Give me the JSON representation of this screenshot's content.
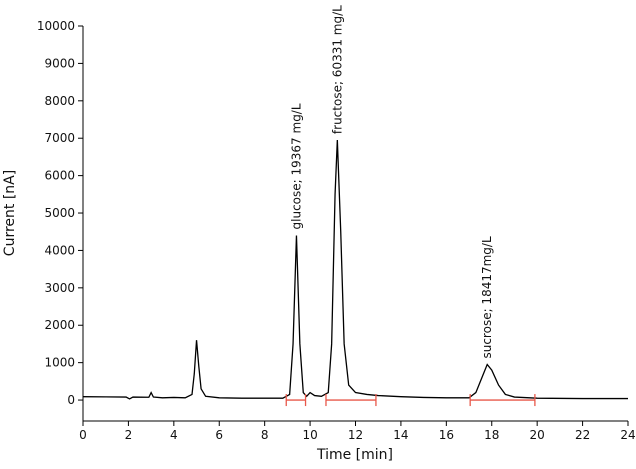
{
  "chart_data": {
    "type": "line",
    "xlabel": "Time [min]",
    "ylabel": "Current [nA]",
    "x": [
      0,
      1,
      1.9,
      2.05,
      2.2,
      2.9,
      3.0,
      3.1,
      3.5,
      4.0,
      4.5,
      4.8,
      4.9,
      5.0,
      5.1,
      5.2,
      5.4,
      6,
      7,
      8,
      8.8,
      9.1,
      9.25,
      9.4,
      9.55,
      9.7,
      9.85,
      10.0,
      10.2,
      10.5,
      10.8,
      10.95,
      11.1,
      11.2,
      11.35,
      11.5,
      11.7,
      12.0,
      12.5,
      13,
      14,
      15,
      16,
      17,
      17.3,
      17.6,
      17.8,
      18.0,
      18.3,
      18.6,
      19,
      20,
      22,
      24
    ],
    "series": [
      {
        "color": "#000000",
        "values": [
          90,
          85,
          80,
          30,
          80,
          75,
          200,
          80,
          60,
          70,
          60,
          150,
          700,
          1600,
          900,
          300,
          100,
          60,
          50,
          50,
          50,
          150,
          1500,
          4400,
          1500,
          200,
          100,
          200,
          120,
          100,
          200,
          1500,
          5500,
          6950,
          4500,
          1500,
          400,
          200,
          150,
          120,
          90,
          70,
          60,
          60,
          200,
          650,
          950,
          800,
          400,
          150,
          80,
          50,
          40,
          40
        ]
      }
    ],
    "xlim": [
      0,
      24
    ],
    "xticks": [
      0,
      2,
      4,
      6,
      8,
      10,
      12,
      14,
      16,
      18,
      20,
      22,
      24
    ],
    "ylim": [
      -560,
      10000
    ],
    "yticks": [
      0,
      1000,
      2000,
      3000,
      4000,
      5000,
      6000,
      7000,
      8000,
      9000,
      10000
    ],
    "grid": false,
    "integration_ranges": [
      [
        8.95,
        9.8
      ],
      [
        10.7,
        12.9
      ],
      [
        17.05,
        19.9
      ]
    ],
    "integration_color": "#e8584a",
    "annotations": [
      "glucose; 19367 mg/L",
      "fructose; 60331 mg/L",
      "sucrose; 18417mg/L"
    ]
  }
}
